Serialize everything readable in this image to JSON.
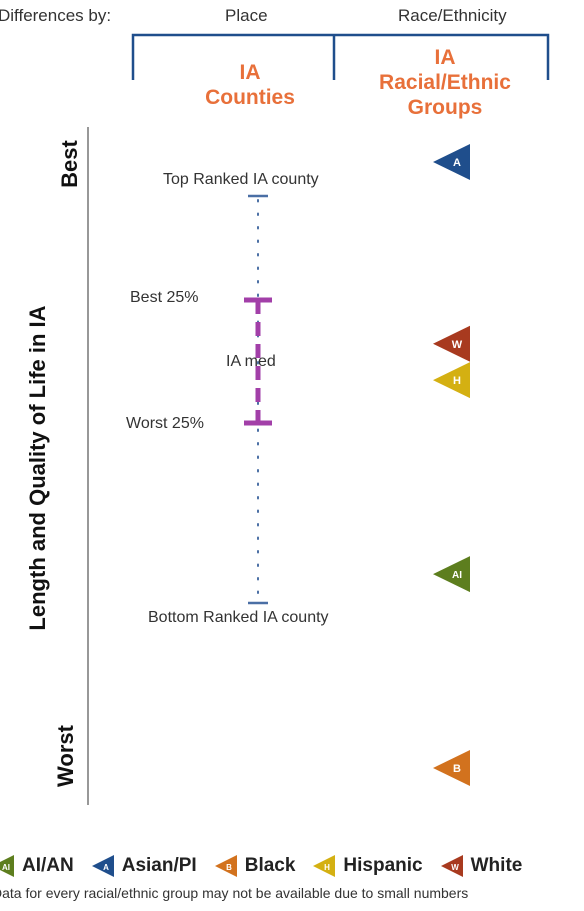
{
  "header": {
    "differences_by": "Differences by:",
    "place": "Place",
    "race_ethnicity": "Race/Ethnicity"
  },
  "columns": {
    "counties_line1": "IA",
    "counties_line2": "Counties",
    "groups_line1": "IA",
    "groups_line2": "Racial/Ethnic",
    "groups_line3": "Groups"
  },
  "axis": {
    "title": "Length and Quality of Life in IA",
    "best": "Best",
    "worst": "Worst"
  },
  "county_scale": {
    "top_label": "Top Ranked IA county",
    "best25_label": "Best 25%",
    "median_label": "IA med",
    "worst25_label": "Worst 25%",
    "bottom_label": "Bottom Ranked IA county"
  },
  "groups": [
    {
      "key": "asian",
      "marker_letter": "A",
      "rank_fraction": 0.0,
      "color": "#1f4e8c"
    },
    {
      "key": "white",
      "marker_letter": "W",
      "rank_fraction": 0.3,
      "color": "#a83a1f"
    },
    {
      "key": "hispanic",
      "marker_letter": "H",
      "rank_fraction": 0.36,
      "color": "#d4b012"
    },
    {
      "key": "aian",
      "marker_letter": "AI",
      "rank_fraction": 0.68,
      "color": "#5d7e1e"
    },
    {
      "key": "black",
      "marker_letter": "B",
      "rank_fraction": 1.0,
      "color": "#d2721e"
    }
  ],
  "legend": [
    {
      "label": "AI/AN",
      "marker_letter": "AI",
      "color": "#5d7e1e"
    },
    {
      "label": "Asian/PI",
      "marker_letter": "A",
      "color": "#1f4e8c"
    },
    {
      "label": "Black",
      "marker_letter": "B",
      "color": "#d2721e"
    },
    {
      "label": "Hispanic",
      "marker_letter": "H",
      "color": "#d4b012"
    },
    {
      "label": "White",
      "marker_letter": "W",
      "color": "#a83a1f"
    }
  ],
  "footnote": "Data for every racial/ethnic group may not be available due to small numbers",
  "colors": {
    "bracket": "#1f4e8c",
    "iqr": "#a23fa8",
    "endpoint": "#4a6fa5",
    "accent": "#e8703a"
  }
}
